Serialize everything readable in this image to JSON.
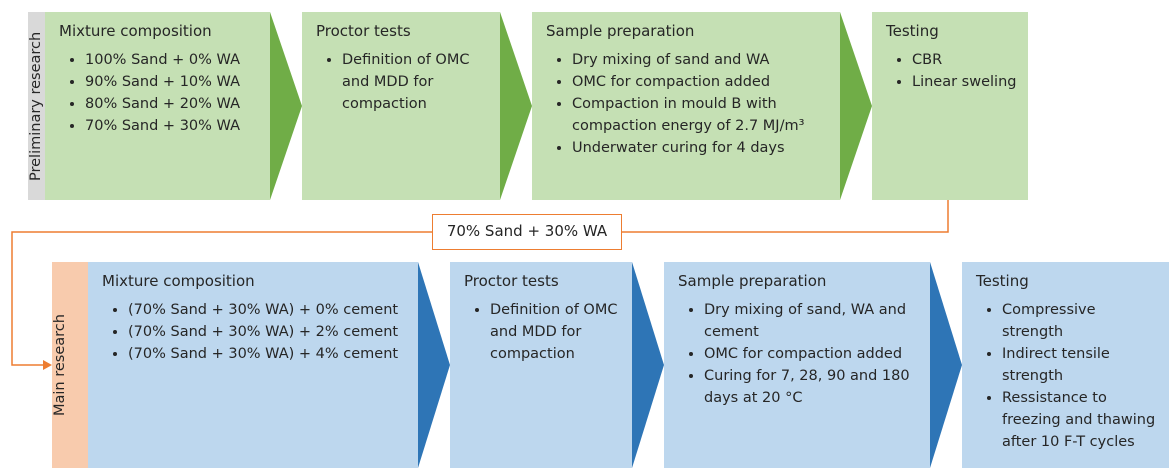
{
  "preliminary": {
    "label": "Preliminary research",
    "steps": [
      {
        "title": "Mixture composition",
        "items": [
          "100% Sand + 0% WA",
          "90% Sand + 10% WA",
          "80% Sand + 20% WA",
          "70% Sand + 30% WA"
        ]
      },
      {
        "title": "Proctor tests",
        "items": [
          "Definition of OMC and MDD for compaction"
        ]
      },
      {
        "title": "Sample preparation",
        "items": [
          "Dry mixing of sand and WA",
          "OMC for compaction added",
          "Compaction in mould B with compaction energy of 2.7 MJ/m³",
          "Underwater curing for 4 days"
        ]
      },
      {
        "title": "Testing",
        "items": [
          "CBR",
          "Linear sweling"
        ]
      }
    ]
  },
  "connector": {
    "label": "70% Sand + 30% WA"
  },
  "main": {
    "label": "Main research",
    "steps": [
      {
        "title": "Mixture composition",
        "items": [
          "(70% Sand + 30% WA) + 0% cement",
          "(70% Sand + 30% WA) + 2% cement",
          "(70% Sand + 30% WA) + 4% cement"
        ]
      },
      {
        "title": "Proctor tests",
        "items": [
          "Definition of OMC and MDD for compaction"
        ]
      },
      {
        "title": "Sample preparation",
        "items": [
          "Dry mixing of sand, WA and cement",
          "OMC for compaction added",
          "Curing for 7, 28, 90 and 180 days at 20 °C"
        ]
      },
      {
        "title": "Testing",
        "items": [
          "Compressive strength",
          "Indirect tensile strength",
          "Ressistance to freezing and thawing after 10 F-T cycles"
        ]
      }
    ]
  }
}
